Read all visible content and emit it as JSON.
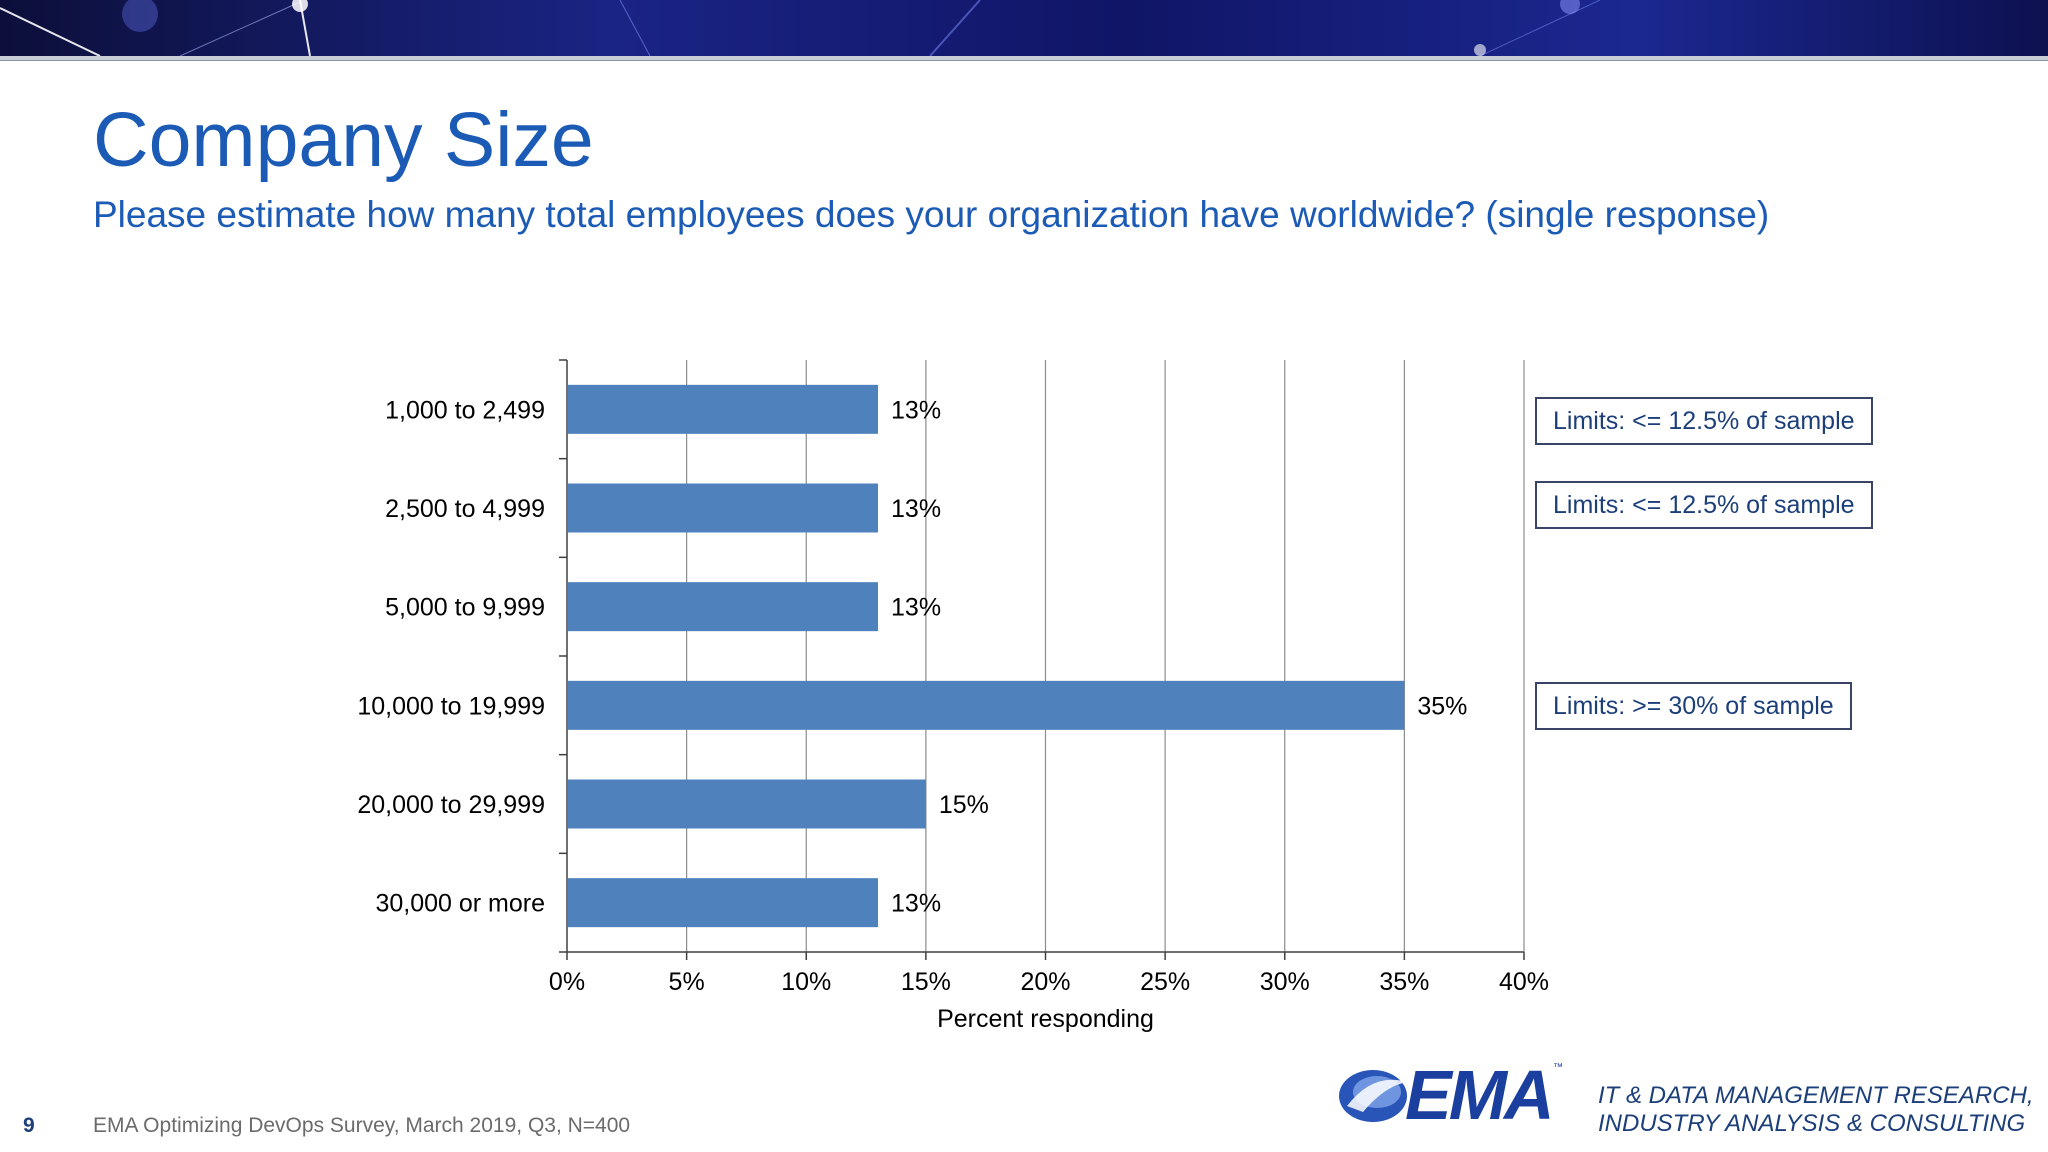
{
  "slide": {
    "title": "Company Size",
    "subtitle": "Please estimate how many total employees does your organization have worldwide? (single response)",
    "page_number": "9",
    "source": "EMA  Optimizing DevOps Survey, March 2019, Q3, N=400"
  },
  "chart_data": {
    "type": "bar",
    "orientation": "horizontal",
    "categories": [
      "1,000 to 2,499",
      "2,500 to 4,999",
      "5,000 to 9,999",
      "10,000 to 19,999",
      "20,000 to 29,999",
      "30,000 or more"
    ],
    "values": [
      13,
      13,
      13,
      35,
      15,
      13
    ],
    "value_labels": [
      "13%",
      "13%",
      "13%",
      "35%",
      "15%",
      "13%"
    ],
    "xlabel": "Percent responding",
    "xlim": [
      0,
      40
    ],
    "ticks": [
      "0%",
      "5%",
      "10%",
      "15%",
      "20%",
      "25%",
      "30%",
      "35%",
      "40%"
    ],
    "grid": true,
    "bar_color": "#4f81bd"
  },
  "annotations": [
    {
      "text": "Limits: <= 12.5% of sample",
      "category_index": 0
    },
    {
      "text": "Limits: <= 12.5% of sample",
      "category_index": 1
    },
    {
      "text": "Limits: >= 30% of sample",
      "category_index": 3
    }
  ],
  "logo": {
    "text": "EMA",
    "tagline_line1": "IT & DATA MANAGEMENT RESEARCH,",
    "tagline_line2": "INDUSTRY ANALYSIS & CONSULTING"
  },
  "colors": {
    "title": "#1c5bb5",
    "bar": "#4f81bd",
    "banner": "#141a6e"
  }
}
